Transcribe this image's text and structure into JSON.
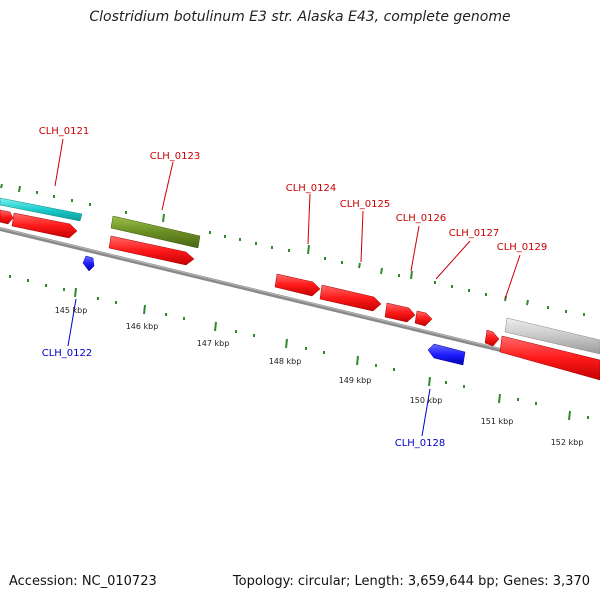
{
  "title": "Clostridium botulinum E3 str. Alaska E43, complete genome",
  "accession": "Accession: NC_010723",
  "topology": "Topology: circular; Length: 3,659,644 bp; Genes: 3,370",
  "colors": {
    "backbone": "#8a8a8a",
    "tick": "#2e8b2e",
    "forward_label": "#cc0000",
    "reverse_label": "#0000cc",
    "red_gene": "#ff1a1a",
    "blue_gene": "#1f1fff",
    "cyan_gene": "#1ccccc",
    "olive_gene": "#6b8e23",
    "grey_gene": "#c8c8c8"
  },
  "scale_labels": [
    "145 kbp",
    "146 kbp",
    "147 kbp",
    "148 kbp",
    "149 kbp",
    "150 kbp",
    "151 kbp",
    "152 kbp"
  ],
  "gene_labels": [
    {
      "name": "CLH_0121",
      "strand": "forward"
    },
    {
      "name": "CLH_0122",
      "strand": "reverse"
    },
    {
      "name": "CLH_0123",
      "strand": "forward"
    },
    {
      "name": "CLH_0124",
      "strand": "forward"
    },
    {
      "name": "CLH_0125",
      "strand": "forward"
    },
    {
      "name": "CLH_0126",
      "strand": "forward"
    },
    {
      "name": "CLH_0127",
      "strand": "forward"
    },
    {
      "name": "CLH_0128",
      "strand": "reverse"
    },
    {
      "name": "CLH_0129",
      "strand": "forward"
    }
  ]
}
